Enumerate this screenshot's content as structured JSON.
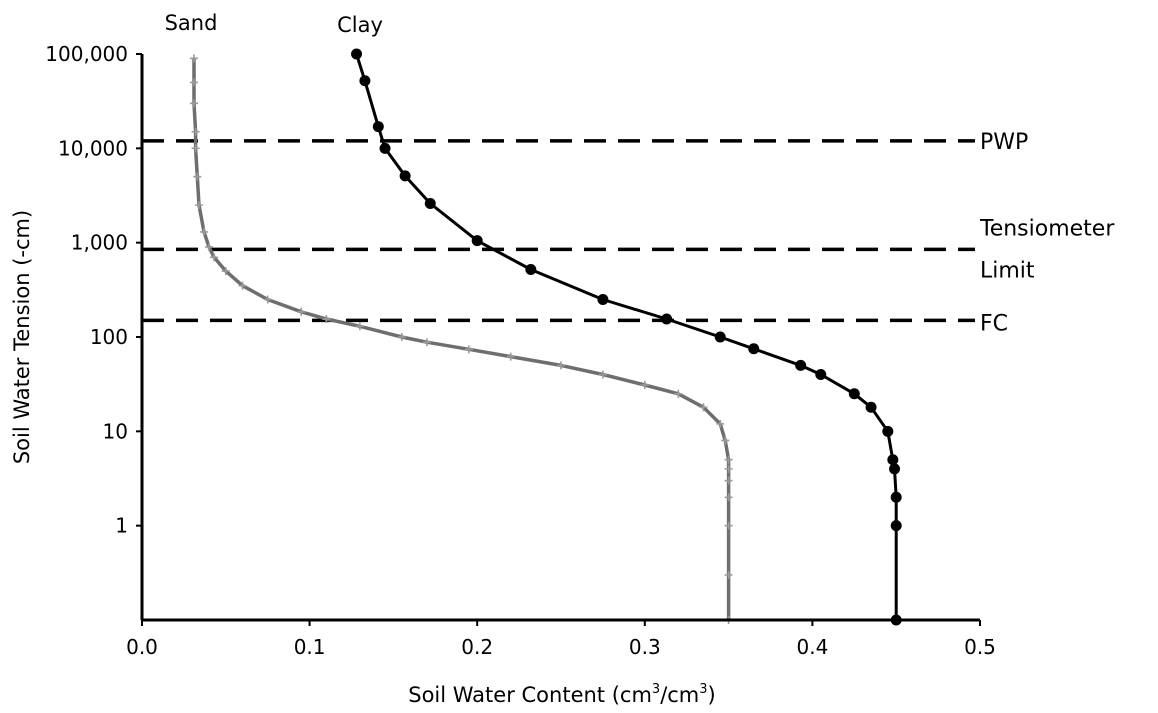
{
  "chart_data": {
    "type": "line",
    "xlabel": {
      "prefix": "Soil Water Content (cm",
      "sup1": "3",
      "mid": "/cm",
      "sup2": "3",
      "suffix": ")"
    },
    "ylabel": "Soil Water Tension  (-cm)",
    "x_ticks": [
      {
        "value": 0.0,
        "label": "0.0"
      },
      {
        "value": 0.1,
        "label": "0.1"
      },
      {
        "value": 0.2,
        "label": "0.2"
      },
      {
        "value": 0.3,
        "label": "0.3"
      },
      {
        "value": 0.4,
        "label": "0.4"
      },
      {
        "value": 0.5,
        "label": "0.5"
      }
    ],
    "y_ticks": [
      {
        "value": 1,
        "label": "1"
      },
      {
        "value": 10,
        "label": "10"
      },
      {
        "value": 100,
        "label": "100"
      },
      {
        "value": 1000,
        "label": "1,000"
      },
      {
        "value": 10000,
        "label": "10,000"
      },
      {
        "value": 100000,
        "label": "100,000"
      }
    ],
    "xlim": [
      0,
      0.5
    ],
    "ylim": [
      0.1,
      100000
    ],
    "y_scale": "log",
    "grid": false,
    "series": [
      {
        "name": "Sand",
        "color": "#6e6e6e",
        "marker": "plus",
        "points": [
          [
            0.35,
            0.1
          ],
          [
            0.35,
            0.3
          ],
          [
            0.35,
            1
          ],
          [
            0.35,
            2
          ],
          [
            0.35,
            3
          ],
          [
            0.35,
            4
          ],
          [
            0.35,
            5
          ],
          [
            0.348,
            8
          ],
          [
            0.345,
            12
          ],
          [
            0.335,
            18
          ],
          [
            0.32,
            25
          ],
          [
            0.3,
            31
          ],
          [
            0.275,
            40
          ],
          [
            0.25,
            50
          ],
          [
            0.22,
            62
          ],
          [
            0.195,
            74
          ],
          [
            0.17,
            88
          ],
          [
            0.155,
            100
          ],
          [
            0.13,
            130
          ],
          [
            0.11,
            155
          ],
          [
            0.095,
            185
          ],
          [
            0.075,
            250
          ],
          [
            0.06,
            350
          ],
          [
            0.05,
            500
          ],
          [
            0.043,
            700
          ],
          [
            0.04,
            900
          ],
          [
            0.037,
            1300
          ],
          [
            0.034,
            2500
          ],
          [
            0.033,
            5000
          ],
          [
            0.032,
            10000
          ],
          [
            0.032,
            15000
          ],
          [
            0.031,
            30000
          ],
          [
            0.031,
            50000
          ],
          [
            0.031,
            90000
          ]
        ]
      },
      {
        "name": "Clay",
        "color": "#000000",
        "marker": "circle",
        "points": [
          [
            0.45,
            0.1
          ],
          [
            0.45,
            1
          ],
          [
            0.45,
            2
          ],
          [
            0.449,
            4
          ],
          [
            0.448,
            5
          ],
          [
            0.445,
            10
          ],
          [
            0.435,
            18
          ],
          [
            0.425,
            25
          ],
          [
            0.405,
            40
          ],
          [
            0.393,
            50
          ],
          [
            0.365,
            75
          ],
          [
            0.345,
            100
          ],
          [
            0.313,
            155
          ],
          [
            0.275,
            250
          ],
          [
            0.232,
            520
          ],
          [
            0.2,
            1050
          ],
          [
            0.172,
            2600
          ],
          [
            0.157,
            5100
          ],
          [
            0.145,
            10000
          ],
          [
            0.141,
            17000
          ],
          [
            0.133,
            52000
          ],
          [
            0.128,
            100000
          ]
        ]
      }
    ],
    "reference_lines": [
      {
        "label": "PWP",
        "value": 12000
      },
      {
        "label": "Tensiometer",
        "label2": "Limit",
        "value": 850
      },
      {
        "label": "FC",
        "value": 150
      }
    ]
  }
}
